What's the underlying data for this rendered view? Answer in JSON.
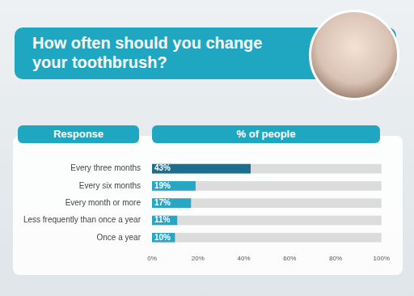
{
  "chart_data": {
    "type": "bar",
    "orientation": "horizontal",
    "title": "How often should you change your toothbrush?",
    "y_label": "Response",
    "x_label": "% of people",
    "categories": [
      "Every three months",
      "Every six months",
      "Every month or more",
      "Less frequently than once a year",
      "Once a year"
    ],
    "values": [
      43,
      19,
      17,
      11,
      10
    ],
    "value_labels": [
      "43%",
      "19%",
      "17%",
      "11%",
      "10%"
    ],
    "colors": [
      "#1b6e8e",
      "#27a7c4",
      "#27a7c4",
      "#27a7c4",
      "#27a7c4"
    ],
    "xlim": [
      0,
      100
    ],
    "xticks": [
      {
        "value": 0,
        "label": "0%"
      },
      {
        "value": 20,
        "label": "20%"
      },
      {
        "value": 40,
        "label": "40%"
      },
      {
        "value": 60,
        "label": "60%"
      },
      {
        "value": 80,
        "label": "80%"
      },
      {
        "value": 100,
        "label": "100%"
      }
    ],
    "grid": false,
    "data_labels": true
  }
}
